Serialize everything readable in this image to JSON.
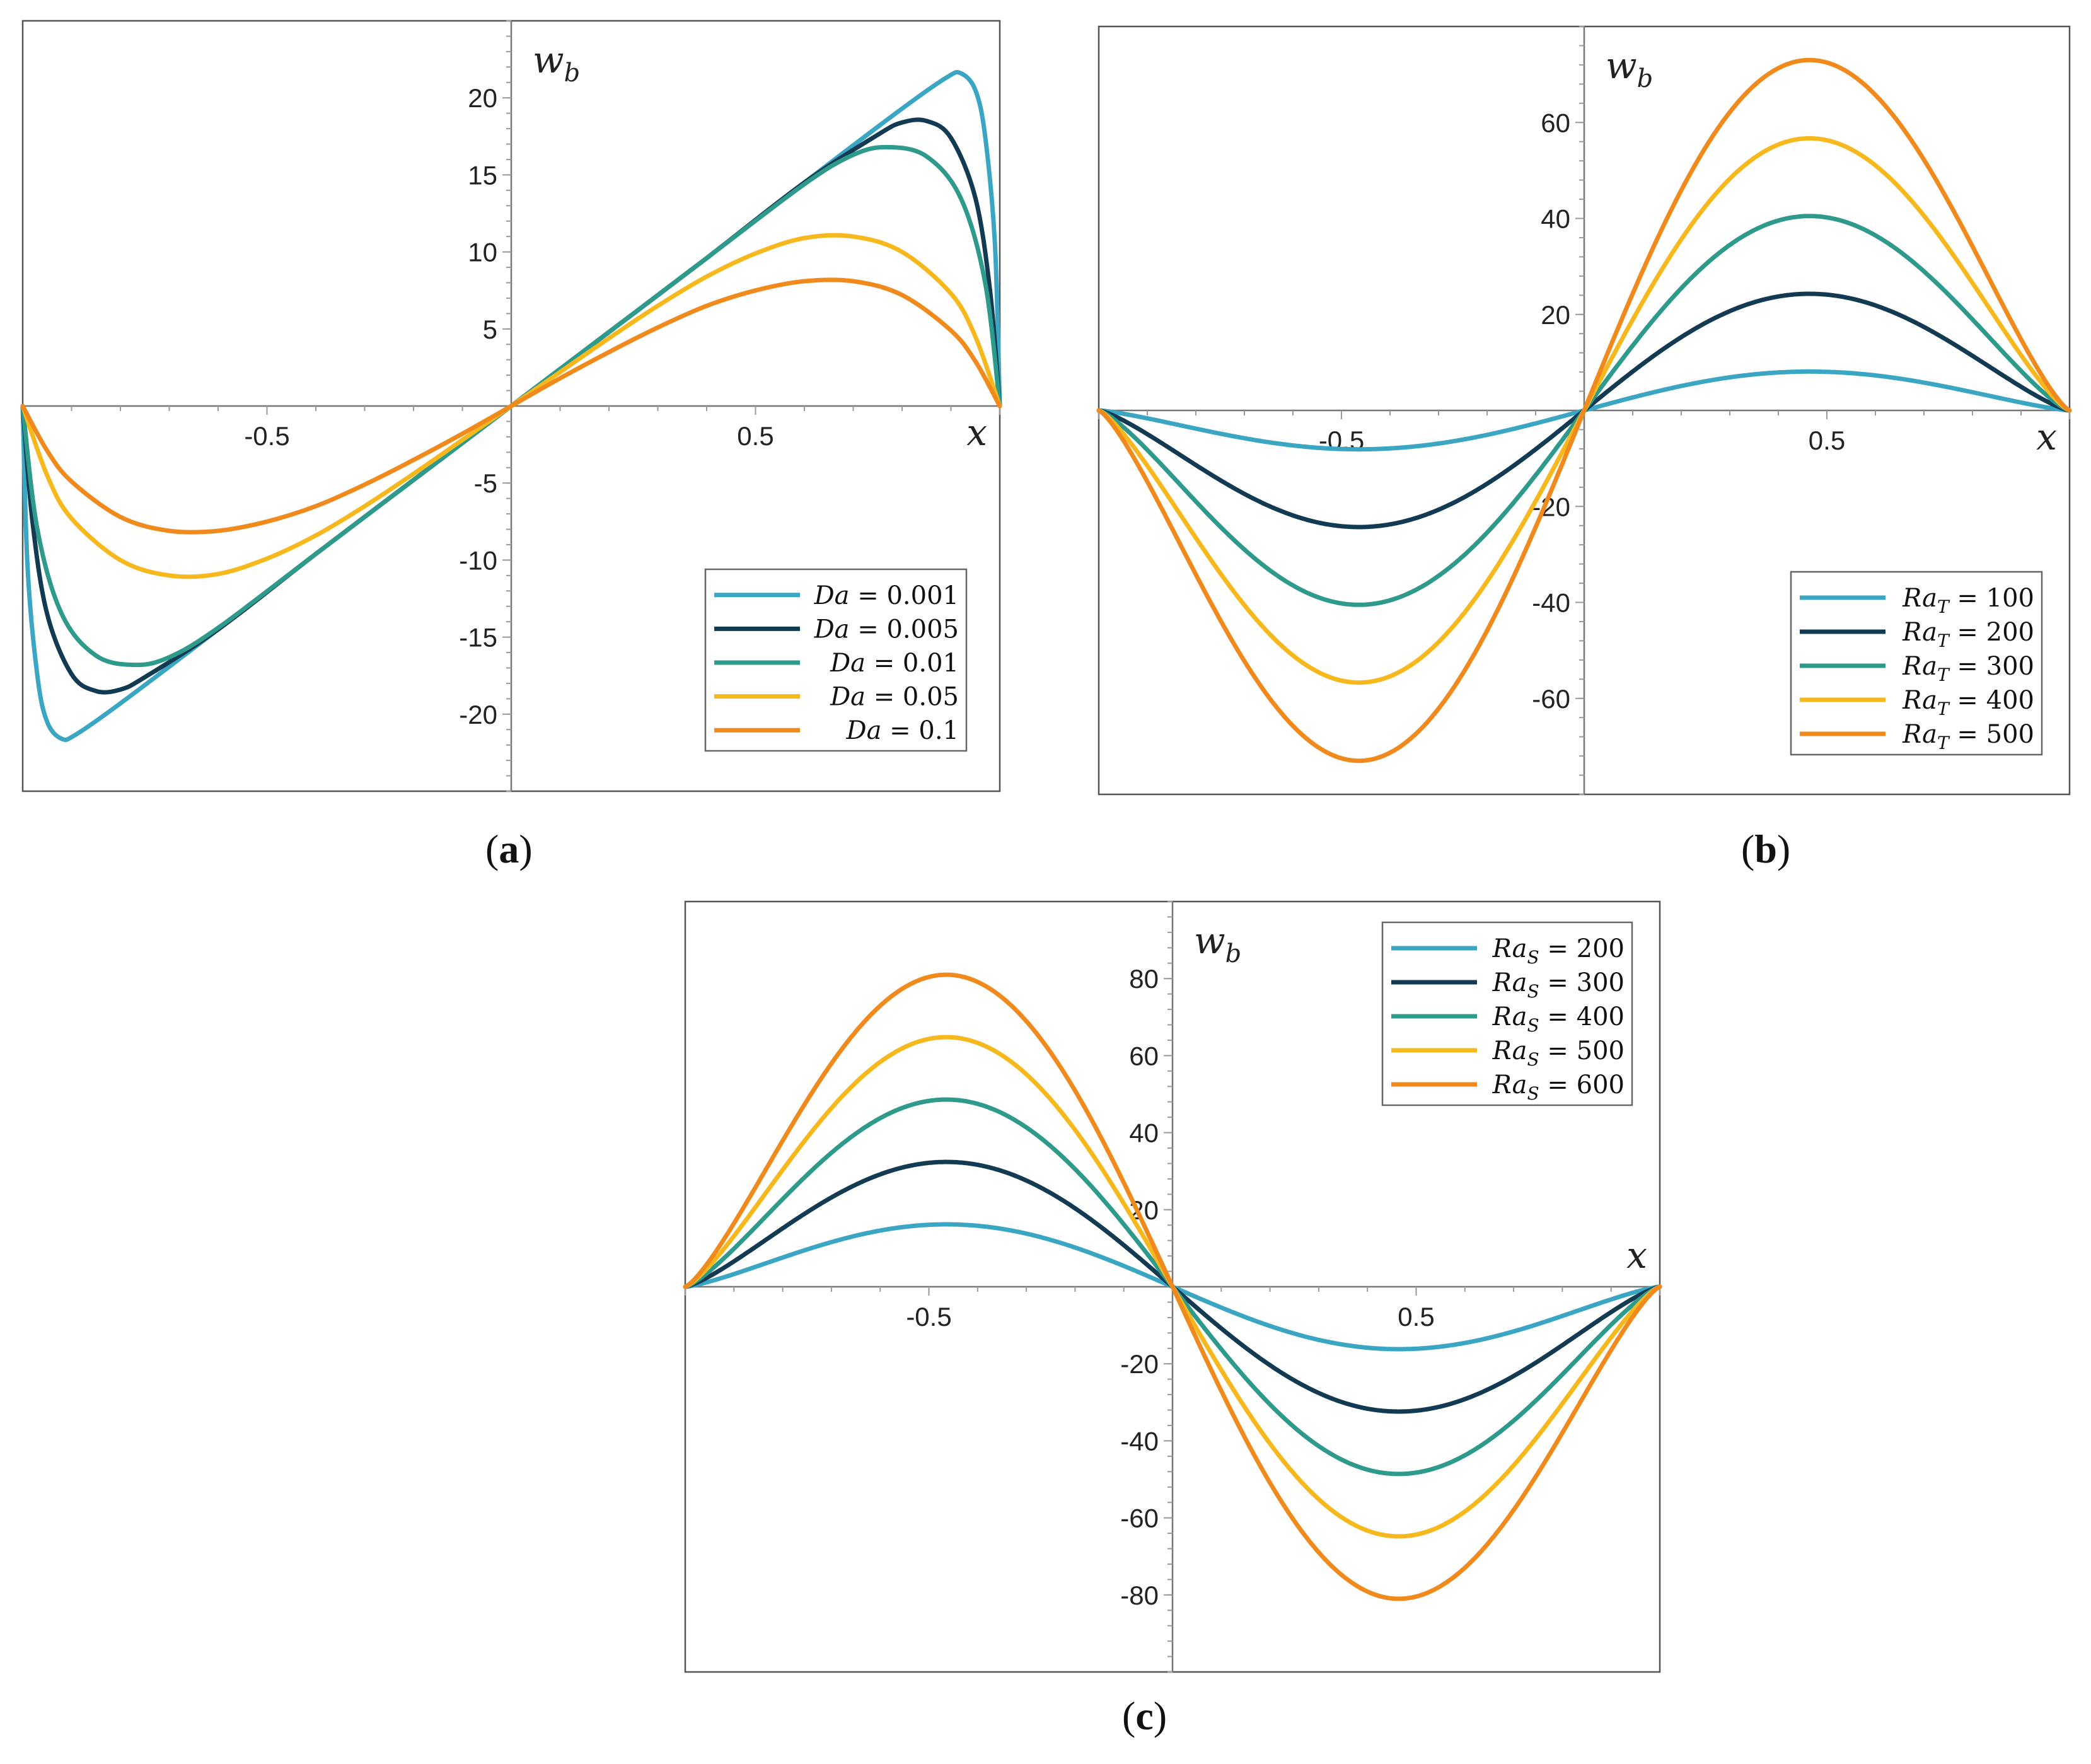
{
  "chart_data": [
    {
      "type": "line",
      "panel": "a",
      "caption": "a",
      "xlabel": "x",
      "ylabel": "w",
      "ylabel_sub": "b",
      "xlim": [
        -1,
        1
      ],
      "ylim": [
        -25,
        25
      ],
      "xticks": [
        -0.5,
        0.5
      ],
      "xtick_labels": [
        "-0.5",
        "0.5"
      ],
      "yticks": [
        -20,
        -15,
        -10,
        -5,
        5,
        10,
        15,
        20
      ],
      "ytick_labels": [
        "-20",
        "-15",
        "-10",
        "-5",
        "5",
        "10",
        "15",
        "20"
      ],
      "legend_position": "bottom-right",
      "series": [
        {
          "name": "Da = 0.001",
          "var": "Da",
          "sub": "",
          "val": "0.001",
          "color": "#3aa6c4",
          "x": [
            -1,
            -0.99,
            -0.97,
            -0.95,
            -0.92,
            -0.89,
            -0.8,
            -0.6,
            -0.4,
            -0.2,
            0,
            0.2,
            0.4,
            0.6,
            0.8,
            0.89,
            0.92,
            0.95,
            0.97,
            0.99,
            1
          ],
          "y": [
            0,
            -10.5,
            -17.5,
            -20.5,
            -21.6,
            -21.3,
            -19.3,
            -14.5,
            -9.6,
            -4.8,
            0,
            4.8,
            9.6,
            14.5,
            19.3,
            21.3,
            21.6,
            20.5,
            17.5,
            10.5,
            0
          ]
        },
        {
          "name": "Da = 0.005",
          "var": "Da",
          "sub": "",
          "val": "0.005",
          "color": "#123a52",
          "x": [
            -1,
            -0.98,
            -0.95,
            -0.9,
            -0.85,
            -0.8,
            -0.75,
            -0.6,
            -0.4,
            -0.2,
            0,
            0.2,
            0.4,
            0.6,
            0.75,
            0.8,
            0.85,
            0.9,
            0.95,
            0.98,
            1
          ],
          "y": [
            0,
            -7.5,
            -13.5,
            -17.4,
            -18.5,
            -18.4,
            -17.6,
            -14.5,
            -9.6,
            -4.8,
            0,
            4.8,
            9.6,
            14.5,
            17.6,
            18.4,
            18.5,
            17.4,
            13.5,
            7.5,
            0
          ]
        },
        {
          "name": "Da = 0.01",
          "var": "Da",
          "sub": "",
          "val": "0.01",
          "color": "#2e9a8c",
          "x": [
            -1,
            -0.97,
            -0.92,
            -0.85,
            -0.77,
            -0.7,
            -0.6,
            -0.4,
            -0.2,
            0,
            0.2,
            0.4,
            0.6,
            0.7,
            0.77,
            0.85,
            0.92,
            0.97,
            1
          ],
          "y": [
            0,
            -8.0,
            -13.5,
            -16.2,
            -16.8,
            -16.3,
            -14.4,
            -9.6,
            -4.8,
            0,
            4.8,
            9.6,
            14.4,
            16.3,
            16.8,
            16.2,
            13.5,
            8.0,
            0
          ]
        },
        {
          "name": "Da = 0.05",
          "var": "Da",
          "sub": "",
          "val": "0.05",
          "color": "#f7b81e",
          "x": [
            -1,
            -0.95,
            -0.9,
            -0.8,
            -0.7,
            -0.6,
            -0.5,
            -0.4,
            -0.3,
            -0.2,
            -0.1,
            0,
            0.1,
            0.2,
            0.3,
            0.4,
            0.5,
            0.6,
            0.7,
            0.8,
            0.9,
            0.95,
            1
          ],
          "y": [
            0,
            -4.5,
            -7.3,
            -10.0,
            -11.0,
            -10.9,
            -9.9,
            -8.4,
            -6.5,
            -4.4,
            -2.2,
            0,
            2.2,
            4.4,
            6.5,
            8.4,
            9.9,
            10.9,
            11.0,
            10.0,
            7.3,
            4.5,
            0
          ]
        },
        {
          "name": "Da = 0.1",
          "var": "Da",
          "sub": "",
          "val": "0.1",
          "color": "#f08a1c",
          "x": [
            -1,
            -0.95,
            -0.9,
            -0.8,
            -0.7,
            -0.6,
            -0.5,
            -0.4,
            -0.3,
            -0.2,
            -0.1,
            0,
            0.1,
            0.2,
            0.3,
            0.4,
            0.5,
            0.6,
            0.7,
            0.8,
            0.9,
            0.95,
            1
          ],
          "y": [
            0,
            -2.9,
            -4.9,
            -7.2,
            -8.1,
            -8.1,
            -7.5,
            -6.5,
            -5.1,
            -3.5,
            -1.8,
            0,
            1.8,
            3.5,
            5.1,
            6.5,
            7.5,
            8.1,
            8.1,
            7.2,
            4.9,
            2.9,
            0
          ]
        }
      ]
    },
    {
      "type": "line",
      "panel": "b",
      "caption": "b",
      "xlabel": "x",
      "ylabel": "w",
      "ylabel_sub": "b",
      "xlim": [
        -1,
        1
      ],
      "ylim": [
        -80,
        80
      ],
      "xticks": [
        -0.5,
        0.5
      ],
      "xtick_labels": [
        "-0.5",
        "0.5"
      ],
      "yticks": [
        -60,
        -40,
        -20,
        20,
        40,
        60
      ],
      "ytick_labels": [
        "-60",
        "-40",
        "-20",
        "20",
        "40",
        "60"
      ],
      "legend_position": "bottom-right",
      "series": [
        {
          "name": "RaT = 100",
          "var": "Ra",
          "sub": "T",
          "val": "100",
          "color": "#3aa6c4",
          "amp": 8.1
        },
        {
          "name": "RaT = 200",
          "var": "Ra",
          "sub": "T",
          "val": "200",
          "color": "#123a52",
          "amp": 24.3
        },
        {
          "name": "RaT = 300",
          "var": "Ra",
          "sub": "T",
          "val": "300",
          "color": "#2e9a8c",
          "amp": 40.5
        },
        {
          "name": "RaT = 400",
          "var": "Ra",
          "sub": "T",
          "val": "400",
          "color": "#f7b81e",
          "amp": 56.7
        },
        {
          "name": "RaT = 500",
          "var": "Ra",
          "sub": "T",
          "val": "500",
          "color": "#f08a1c",
          "amp": 73.0
        }
      ]
    },
    {
      "type": "line",
      "panel": "c",
      "caption": "c",
      "xlabel": "x",
      "ylabel": "w",
      "ylabel_sub": "b",
      "xlim": [
        -1,
        1
      ],
      "ylim": [
        -100,
        100
      ],
      "xticks": [
        -0.5,
        0.5
      ],
      "xtick_labels": [
        "-0.5",
        "0.5"
      ],
      "yticks": [
        -80,
        -60,
        -40,
        -20,
        20,
        40,
        60,
        80
      ],
      "ytick_labels": [
        "-80",
        "-60",
        "-40",
        "-20",
        "20",
        "40",
        "60",
        "80"
      ],
      "legend_position": "top-right",
      "series": [
        {
          "name": "RaS = 200",
          "var": "Ra",
          "sub": "S",
          "val": "200",
          "color": "#3aa6c4",
          "amp": -16.2
        },
        {
          "name": "RaS = 300",
          "var": "Ra",
          "sub": "S",
          "val": "300",
          "color": "#123a52",
          "amp": -32.4
        },
        {
          "name": "RaS = 400",
          "var": "Ra",
          "sub": "S",
          "val": "400",
          "color": "#2e9a8c",
          "amp": -48.6
        },
        {
          "name": "RaS = 500",
          "var": "Ra",
          "sub": "S",
          "val": "500",
          "color": "#f7b81e",
          "amp": -64.8
        },
        {
          "name": "RaS = 600",
          "var": "Ra",
          "sub": "S",
          "val": "600",
          "color": "#f08a1c",
          "amp": -81.0
        }
      ]
    }
  ]
}
